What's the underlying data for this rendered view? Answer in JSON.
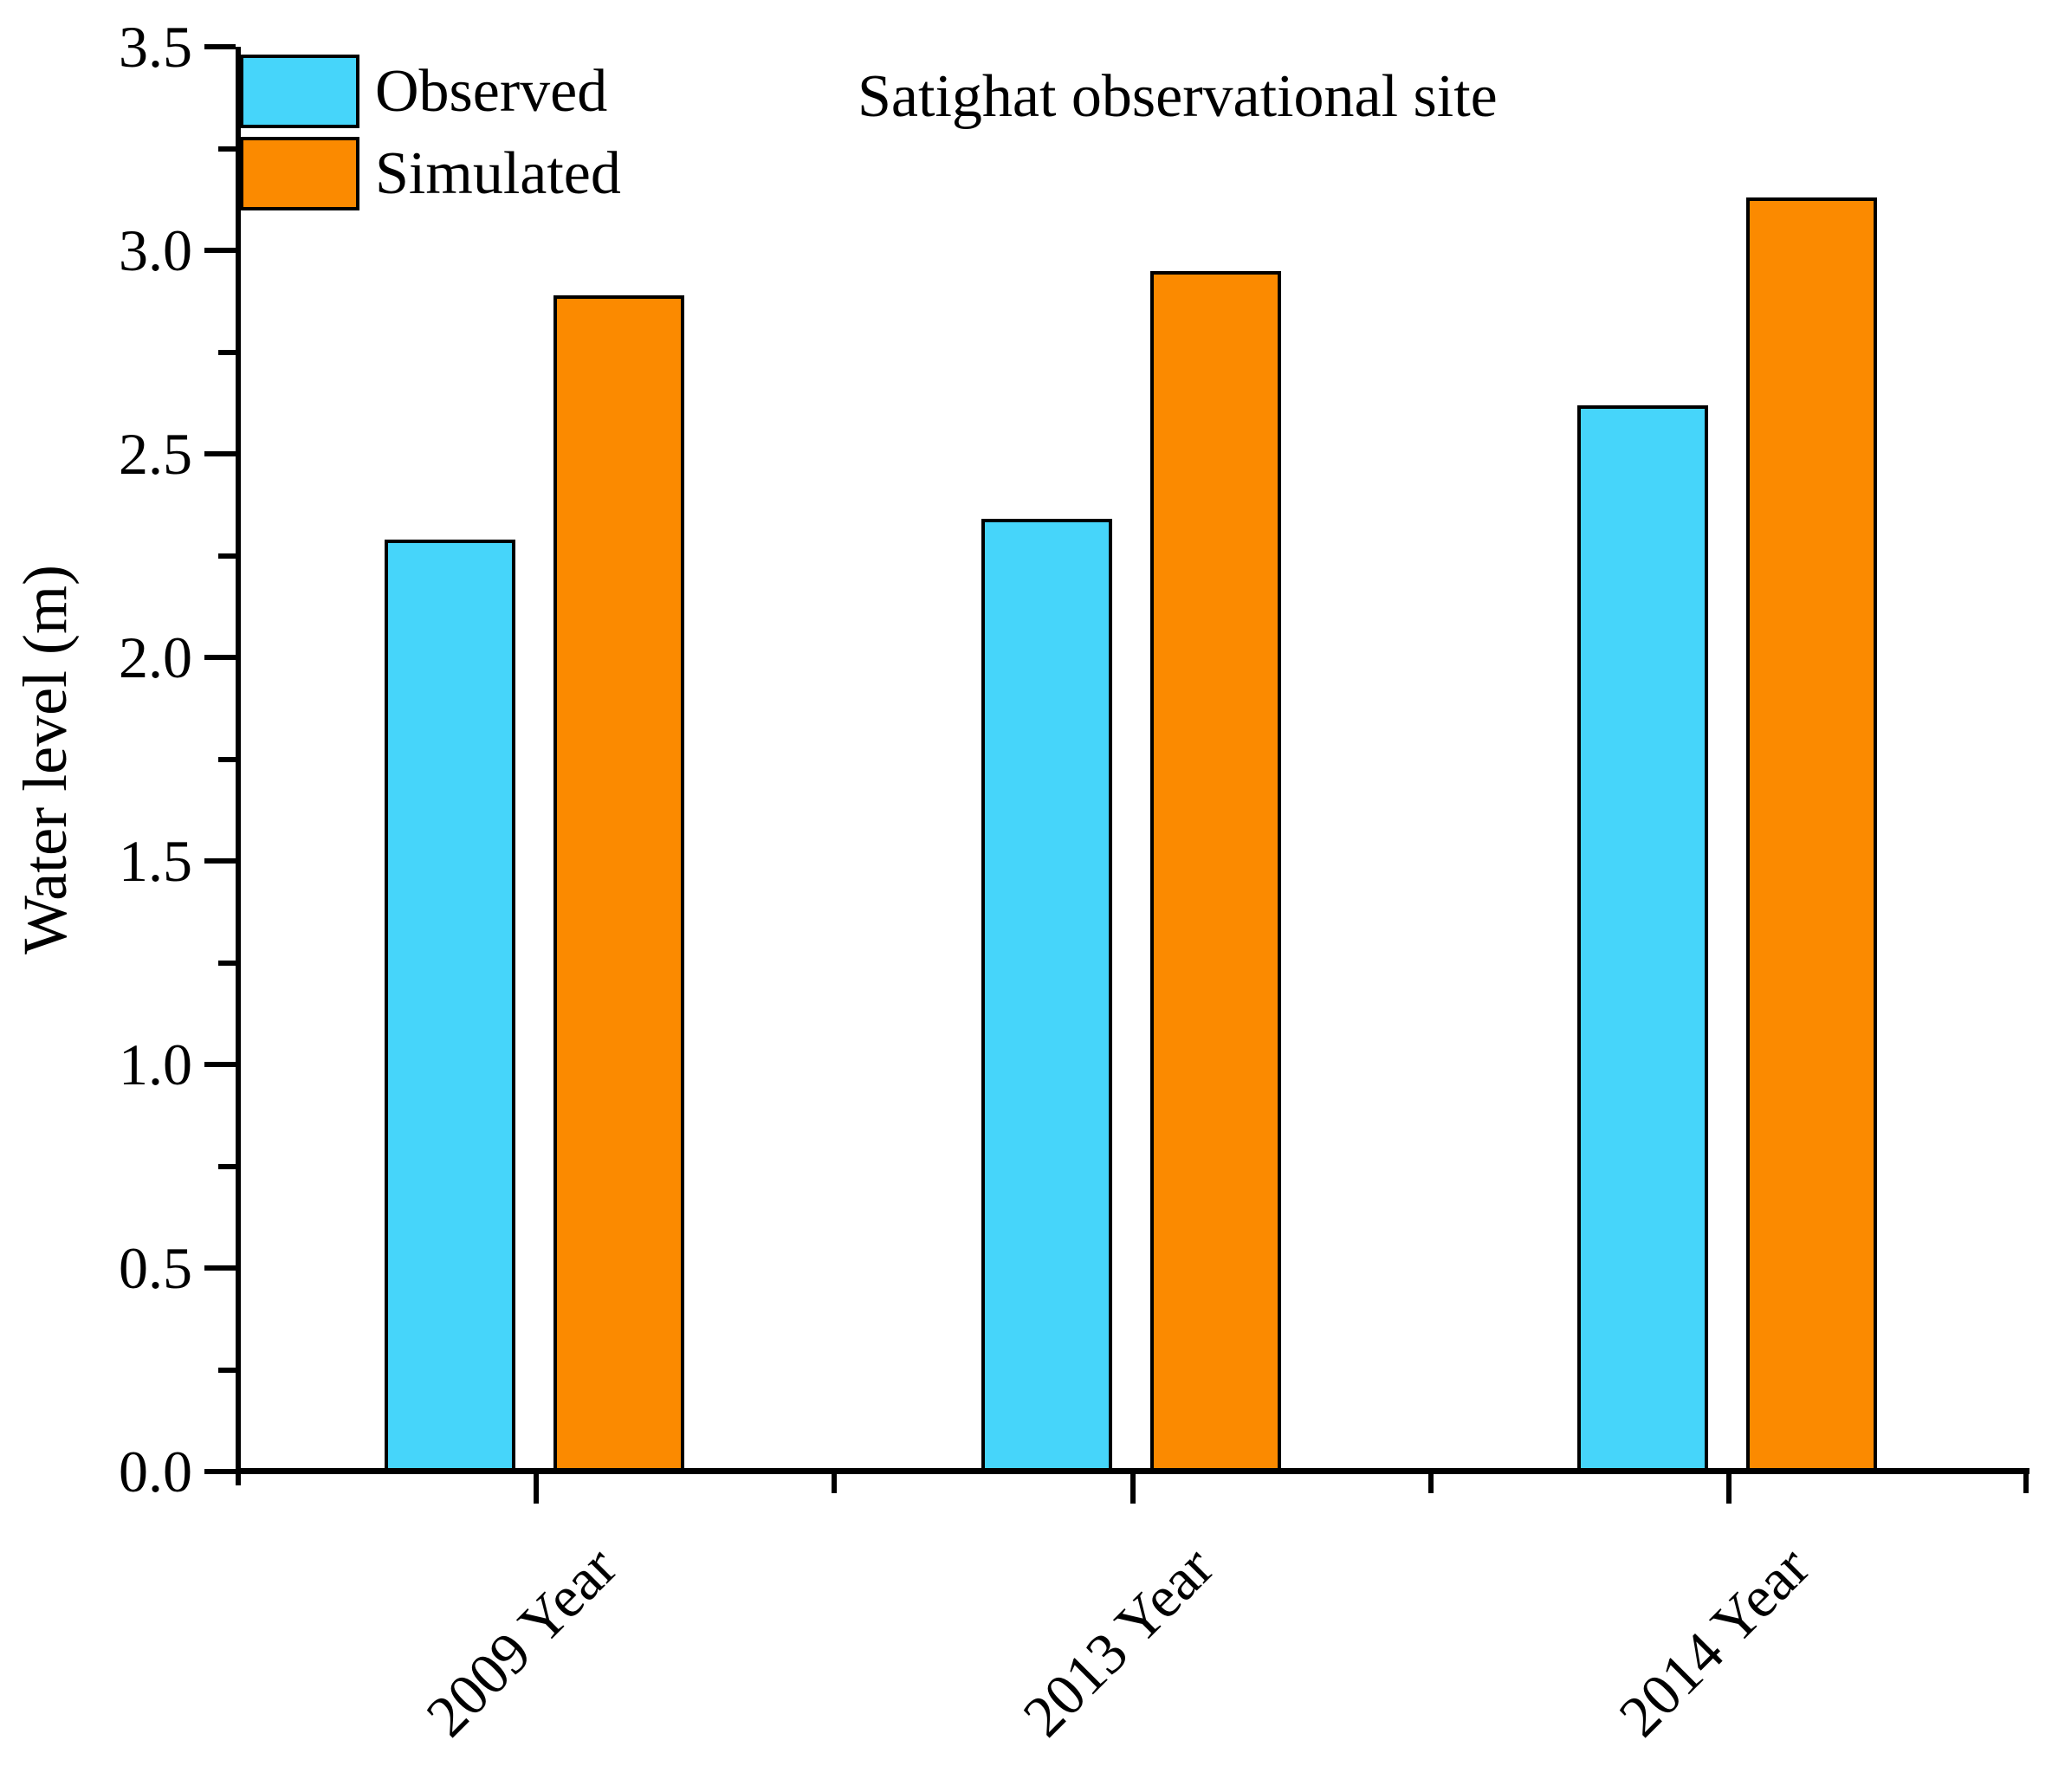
{
  "chart_data": {
    "type": "bar",
    "title": "Satighat observational site",
    "ylabel": "Water level (m)",
    "xlabel": "",
    "categories": [
      "2009 Year",
      "2013 Year",
      "2014 Year"
    ],
    "series": [
      {
        "name": "Observed",
        "color": "#46d5fa",
        "values": [
          2.29,
          2.34,
          2.62
        ]
      },
      {
        "name": "Simulated",
        "color": "#fb8a00",
        "values": [
          2.89,
          2.95,
          3.13
        ]
      }
    ],
    "ylim": [
      0.0,
      3.5
    ],
    "y_major_step": 0.5,
    "y_minor_step": 0.25,
    "y_tick_labels": [
      "0.0",
      "0.5",
      "1.0",
      "1.5",
      "2.0",
      "2.5",
      "3.0",
      "3.5"
    ],
    "legend_position": "top-left",
    "grid": false,
    "bar_edge_color": "#000000",
    "axis_color": "#000000",
    "background_color": "#ffffff"
  }
}
